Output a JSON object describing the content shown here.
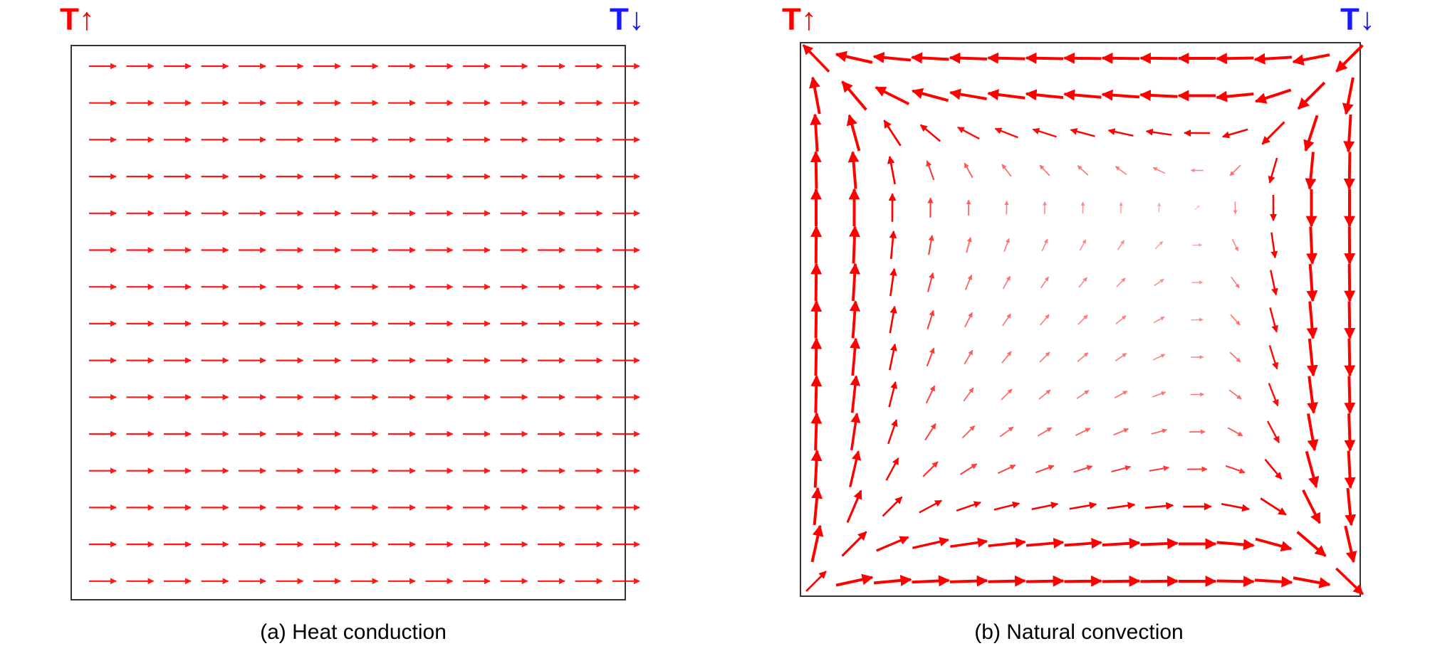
{
  "panels": [
    {
      "left_label": "T↑",
      "right_label": "T↓",
      "caption": "(a) Heat conduction"
    },
    {
      "left_label": "T↑",
      "right_label": "T↓",
      "caption": "(b) Natural convection"
    }
  ]
}
